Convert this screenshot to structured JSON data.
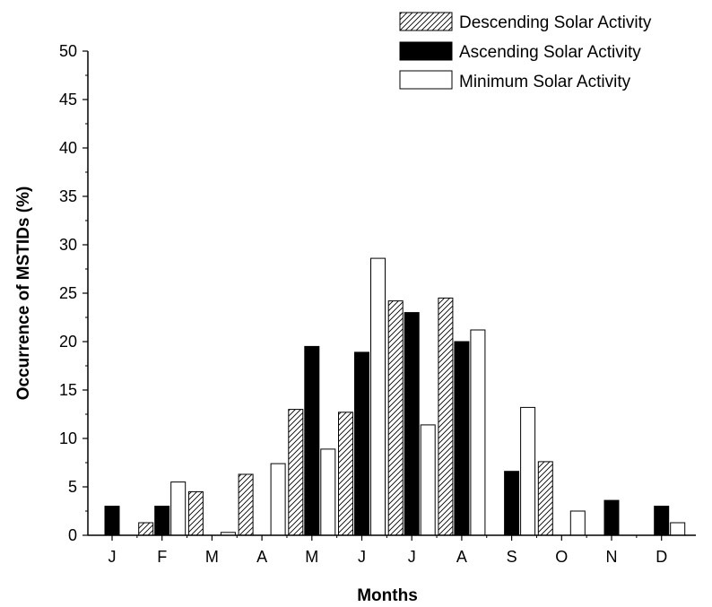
{
  "chart_data": {
    "type": "bar",
    "title": "",
    "xlabel": "Months",
    "ylabel": "Occurrence of MSTIDs (%)",
    "ylim": [
      0,
      50
    ],
    "yticks": [
      0,
      5,
      10,
      15,
      20,
      25,
      30,
      35,
      40,
      45,
      50
    ],
    "categories": [
      "J",
      "F",
      "M",
      "A",
      "M",
      "J",
      "J",
      "A",
      "S",
      "O",
      "N",
      "D"
    ],
    "grid": false,
    "legend_position": "top-right",
    "series": [
      {
        "name": "Descending Solar Activity",
        "fill": "hatched",
        "values": [
          0,
          1.3,
          4.5,
          6.3,
          13.0,
          12.7,
          24.2,
          24.5,
          0,
          7.6,
          0,
          0
        ]
      },
      {
        "name": "Ascending Solar Activity",
        "fill": "black",
        "values": [
          3.0,
          3.0,
          0,
          0,
          19.5,
          18.9,
          23.0,
          20.0,
          6.6,
          0,
          3.6,
          3.0
        ]
      },
      {
        "name": "Minimum Solar Activity",
        "fill": "white",
        "values": [
          0,
          5.5,
          0.3,
          7.4,
          8.9,
          28.6,
          11.4,
          21.2,
          13.2,
          2.5,
          0,
          1.3
        ]
      }
    ]
  },
  "colors": {
    "axis": "#000000",
    "descending": "hatched",
    "ascending": "#000000",
    "minimum": "#ffffff"
  }
}
